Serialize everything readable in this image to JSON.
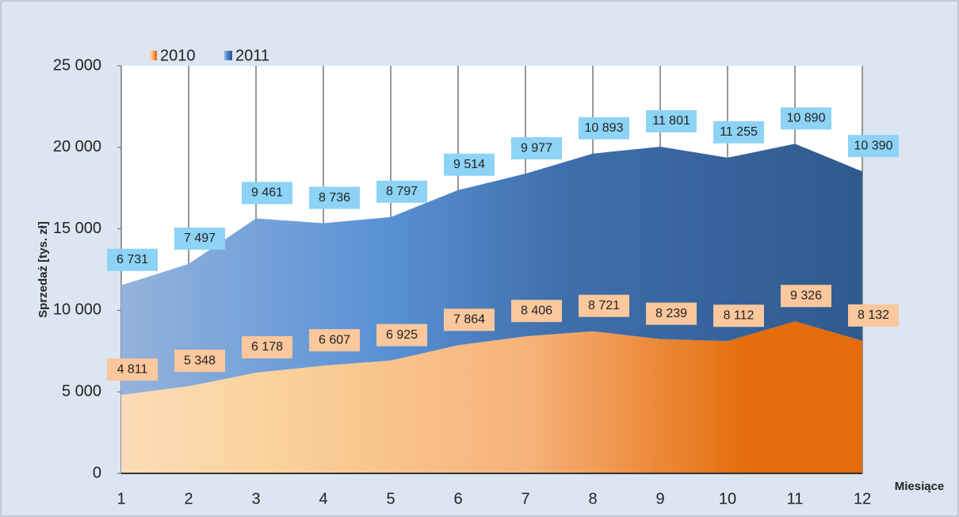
{
  "chart_data": {
    "type": "stacked-area",
    "y_label": "Sprzedaż [tys. zł]",
    "x_label": "Miesiące",
    "x": [
      1,
      2,
      3,
      4,
      5,
      6,
      7,
      8,
      9,
      10,
      11,
      12
    ],
    "xlim": [
      1,
      12
    ],
    "xticks": [
      1,
      2,
      3,
      4,
      5,
      6,
      7,
      8,
      9,
      10,
      11,
      12
    ],
    "ylim": [
      0,
      25000
    ],
    "yticks": [
      0,
      {
        "value": 5000,
        "label": "5 000"
      },
      {
        "value": 10000,
        "label": "10 000"
      },
      {
        "value": 15000,
        "label": "15 000"
      },
      {
        "value": 20000,
        "label": "20 000"
      },
      {
        "value": 25000,
        "label": "25 000"
      }
    ],
    "grid": true,
    "legend": "top-left",
    "series": [
      {
        "name": "2010",
        "color": "#e46c0a",
        "values": [
          4811,
          5348,
          6178,
          6607,
          6925,
          7864,
          8406,
          8721,
          8239,
          8112,
          9326,
          8132
        ],
        "value_labels": [
          "4 811",
          "5 348",
          "6 178",
          "6 607",
          "6 925",
          "7 864",
          "8 406",
          "8 721",
          "8 239",
          "8 112",
          "9 326",
          "8 132"
        ]
      },
      {
        "name": "2011",
        "color": "#2f5a8e",
        "values": [
          6731,
          7497,
          9461,
          8736,
          8797,
          9514,
          9977,
          10893,
          11801,
          11255,
          10890,
          10390
        ],
        "value_labels": [
          "6 731",
          "7 497",
          "9 461",
          "8 736",
          "8 797",
          "9 514",
          "9 977",
          "10 893",
          "11 801",
          "11 255",
          "10 890",
          "10 390"
        ]
      }
    ]
  }
}
